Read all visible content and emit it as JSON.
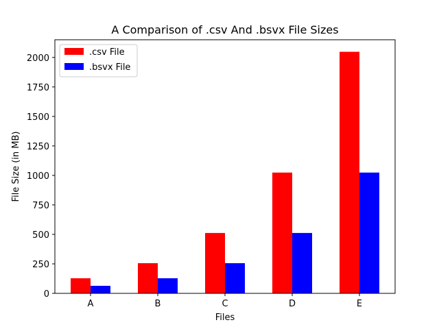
{
  "chart_data": {
    "type": "bar",
    "title": "A Comparison of .csv And .bsvx File Sizes",
    "xlabel": "Files",
    "ylabel": "File Size (in MB)",
    "categories": [
      "A",
      "B",
      "C",
      "D",
      "E"
    ],
    "series": [
      {
        "name": ".csv File",
        "color": "#ff0000",
        "values": [
          128,
          256,
          512,
          1024,
          2048
        ]
      },
      {
        "name": ".bsvx File",
        "color": "#0000ff",
        "values": [
          64,
          128,
          256,
          512,
          1024
        ]
      }
    ],
    "ylim": [
      0,
      2150
    ],
    "yticks": [
      0,
      250,
      500,
      750,
      1000,
      1250,
      1500,
      1750,
      2000
    ],
    "grid": false,
    "legend_position": "top-left"
  }
}
